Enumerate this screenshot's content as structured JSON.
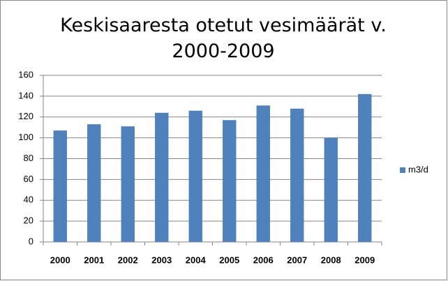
{
  "chart_data": {
    "type": "bar",
    "title": "Keskisaaresta otetut vesimäärät v. 2000-2009",
    "categories": [
      "2000",
      "2001",
      "2002",
      "2003",
      "2004",
      "2005",
      "2006",
      "2007",
      "2008",
      "2009"
    ],
    "series": [
      {
        "name": "m3/d",
        "color": "#4f81bd",
        "values": [
          107,
          113,
          111,
          124,
          126,
          117,
          131,
          128,
          100,
          142
        ]
      }
    ],
    "ylim": [
      0,
      160
    ],
    "yticks": [
      0,
      20,
      40,
      60,
      80,
      100,
      120,
      140,
      160
    ],
    "grid": true,
    "legend": "right"
  }
}
